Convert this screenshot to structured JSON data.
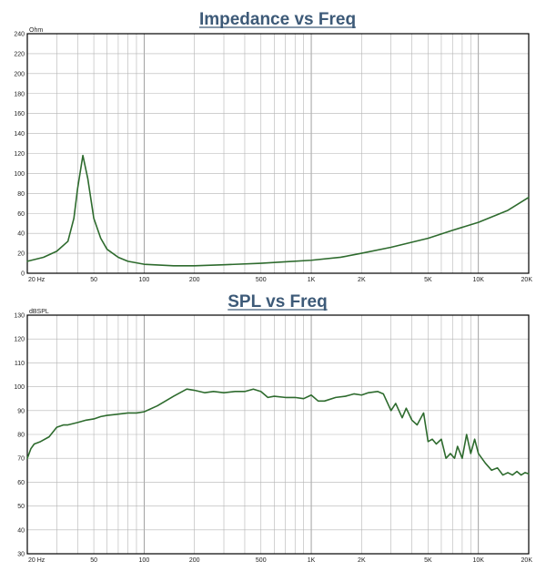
{
  "colors": {
    "curve": "#2e6b2e",
    "title": "#3d5a78"
  },
  "chart_data": [
    {
      "type": "line",
      "title": "Impedance vs Freq",
      "ylabel": "Ohm",
      "xscale": "log",
      "xlim": [
        20,
        20000
      ],
      "ylim": [
        0,
        240
      ],
      "yticks": [
        0,
        20,
        40,
        60,
        80,
        100,
        120,
        140,
        160,
        180,
        200,
        220,
        240
      ],
      "xticks": [
        {
          "value": 20,
          "label": "20 Hz"
        },
        {
          "value": 50,
          "label": "50"
        },
        {
          "value": 100,
          "label": "100"
        },
        {
          "value": 200,
          "label": "200"
        },
        {
          "value": 500,
          "label": "500"
        },
        {
          "value": 1000,
          "label": "1K"
        },
        {
          "value": 2000,
          "label": "2K"
        },
        {
          "value": 5000,
          "label": "5K"
        },
        {
          "value": 10000,
          "label": "10K"
        },
        {
          "value": 20000,
          "label": "20K"
        }
      ],
      "grid": true,
      "series": [
        {
          "x": [
            20,
            25,
            30,
            35,
            38,
            40,
            43,
            46,
            50,
            55,
            60,
            70,
            80,
            100,
            150,
            200,
            300,
            500,
            700,
            1000,
            1500,
            2000,
            3000,
            5000,
            7000,
            10000,
            15000,
            20000
          ],
          "y": [
            12,
            16,
            22,
            32,
            55,
            85,
            118,
            95,
            55,
            35,
            24,
            16,
            12,
            9,
            7.5,
            7.5,
            8.5,
            10,
            11.5,
            13,
            16,
            20,
            26,
            35,
            43,
            51,
            63,
            76
          ]
        }
      ]
    },
    {
      "type": "line",
      "title": "SPL vs Freq",
      "ylabel": "dBSPL",
      "xscale": "log",
      "xlim": [
        20,
        20000
      ],
      "ylim": [
        30,
        130
      ],
      "yticks": [
        30,
        40,
        50,
        60,
        70,
        80,
        90,
        100,
        110,
        120,
        130
      ],
      "xticks": [
        {
          "value": 20,
          "label": "20 Hz"
        },
        {
          "value": 50,
          "label": "50"
        },
        {
          "value": 100,
          "label": "100"
        },
        {
          "value": 200,
          "label": "200"
        },
        {
          "value": 500,
          "label": "500"
        },
        {
          "value": 1000,
          "label": "1K"
        },
        {
          "value": 2000,
          "label": "2K"
        },
        {
          "value": 5000,
          "label": "5K"
        },
        {
          "value": 10000,
          "label": "10K"
        },
        {
          "value": 20000,
          "label": "20K"
        }
      ],
      "grid": true,
      "series": [
        {
          "x": [
            20,
            21,
            22,
            24,
            27,
            30,
            33,
            35,
            40,
            45,
            50,
            55,
            60,
            70,
            80,
            90,
            100,
            120,
            150,
            180,
            200,
            230,
            260,
            300,
            350,
            400,
            450,
            500,
            550,
            600,
            700,
            800,
            900,
            1000,
            1100,
            1200,
            1400,
            1600,
            1800,
            2000,
            2200,
            2500,
            2700,
            3000,
            3200,
            3500,
            3700,
            4000,
            4300,
            4700,
            5000,
            5300,
            5600,
            6000,
            6400,
            6800,
            7200,
            7500,
            8000,
            8500,
            9000,
            9500,
            10000,
            11000,
            12000,
            13000,
            14000,
            15000,
            16000,
            17000,
            18000,
            19000,
            20000
          ],
          "y": [
            70,
            74,
            76,
            77,
            79,
            83,
            84,
            84,
            85,
            86,
            86.5,
            87.5,
            88,
            88.5,
            89,
            89,
            89.5,
            92,
            96,
            99,
            98.5,
            97.5,
            98,
            97.5,
            98,
            98,
            99,
            98,
            95.5,
            96,
            95.5,
            95.5,
            95,
            96.5,
            94,
            94,
            95.5,
            96,
            97,
            96.5,
            97.5,
            98,
            97,
            90,
            93,
            87,
            91,
            86,
            84,
            89,
            77,
            78,
            76,
            78,
            70,
            72,
            70,
            75,
            70,
            80,
            72,
            78,
            72,
            68,
            65,
            66,
            63,
            64,
            63,
            64.5,
            63,
            64,
            63.5
          ]
        }
      ]
    }
  ]
}
